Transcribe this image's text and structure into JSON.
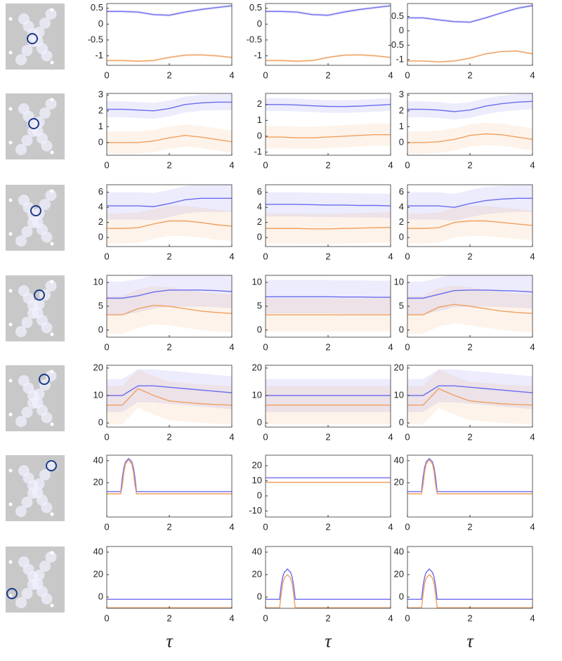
{
  "chart_data": [
    {
      "type": "line",
      "xlim": [
        0,
        4
      ],
      "xticks": [
        0,
        2,
        4
      ],
      "ylim": [
        -1.3,
        0.65
      ],
      "yticks": [
        -1,
        -0.5,
        0,
        0.5
      ],
      "x": [
        0,
        0.5,
        1,
        1.5,
        2,
        2.5,
        3,
        3.5,
        4
      ],
      "series": [
        {
          "color": "#6b6bf0",
          "values": [
            0.4,
            0.4,
            0.38,
            0.3,
            0.28,
            0.38,
            0.46,
            0.52,
            0.58
          ],
          "spread": 0.05
        },
        {
          "color": "#f0a060",
          "values": [
            -1.15,
            -1.15,
            -1.17,
            -1.15,
            -1.05,
            -0.98,
            -0.97,
            -1.0,
            -1.05
          ],
          "spread": 0.04
        }
      ]
    },
    {
      "type": "line",
      "xlim": [
        0,
        4
      ],
      "xticks": [
        0,
        2,
        4
      ],
      "ylim": [
        -1.3,
        0.65
      ],
      "yticks": [
        -1,
        -0.5,
        0,
        0.5
      ],
      "x": [
        0,
        0.5,
        1,
        1.5,
        2,
        2.5,
        3,
        3.5,
        4
      ],
      "series": [
        {
          "color": "#6b6bf0",
          "values": [
            0.4,
            0.4,
            0.38,
            0.3,
            0.28,
            0.38,
            0.46,
            0.52,
            0.58
          ],
          "spread": 0.05
        },
        {
          "color": "#f0a060",
          "values": [
            -1.15,
            -1.15,
            -1.17,
            -1.15,
            -1.05,
            -0.98,
            -0.97,
            -1.0,
            -1.05
          ],
          "spread": 0.04
        }
      ]
    },
    {
      "type": "line",
      "xlim": [
        0,
        4
      ],
      "xticks": [
        0,
        2,
        4
      ],
      "ylim": [
        -1.2,
        0.95
      ],
      "yticks": [
        -1,
        -0.5,
        0,
        0.5
      ],
      "x": [
        0,
        0.5,
        1,
        1.5,
        2,
        2.5,
        3,
        3.5,
        4
      ],
      "series": [
        {
          "color": "#6b6bf0",
          "values": [
            0.45,
            0.45,
            0.38,
            0.32,
            0.3,
            0.45,
            0.62,
            0.78,
            0.88
          ],
          "spread": 0.05
        },
        {
          "color": "#f0a060",
          "values": [
            -1.05,
            -1.05,
            -1.08,
            -1.05,
            -0.95,
            -0.8,
            -0.72,
            -0.7,
            -0.8
          ],
          "spread": 0.04
        }
      ]
    },
    {
      "type": "line",
      "xlim": [
        0,
        4
      ],
      "xticks": [
        0,
        2,
        4
      ],
      "ylim": [
        -0.8,
        3.1
      ],
      "yticks": [
        0,
        1,
        2,
        3
      ],
      "x": [
        0,
        0.5,
        1,
        1.5,
        2,
        2.5,
        3,
        3.5,
        4
      ],
      "series": [
        {
          "color": "#6b6bf0",
          "values": [
            2.1,
            2.1,
            2.05,
            2.0,
            2.15,
            2.4,
            2.5,
            2.55,
            2.55
          ],
          "spread": 0.5
        },
        {
          "color": "#f0a060",
          "values": [
            0,
            0,
            0,
            0.1,
            0.3,
            0.45,
            0.35,
            0.2,
            0.05
          ],
          "spread": 0.7
        }
      ]
    },
    {
      "type": "line",
      "xlim": [
        0,
        4
      ],
      "xticks": [
        0,
        2,
        4
      ],
      "ylim": [
        -1.2,
        2.7
      ],
      "yticks": [
        -1,
        0,
        1,
        2
      ],
      "x": [
        0,
        0.5,
        1,
        1.5,
        2,
        2.5,
        3,
        3.5,
        4
      ],
      "series": [
        {
          "color": "#6b6bf0",
          "values": [
            2.0,
            2.0,
            1.97,
            1.92,
            1.88,
            1.87,
            1.9,
            1.95,
            2.0
          ],
          "spread": 0.4
        },
        {
          "color": "#f0a060",
          "values": [
            -0.05,
            -0.05,
            -0.1,
            -0.1,
            -0.05,
            0,
            0.05,
            0.1,
            0.1
          ],
          "spread": 0.7
        }
      ]
    },
    {
      "type": "line",
      "xlim": [
        0,
        4
      ],
      "xticks": [
        0,
        2,
        4
      ],
      "ylim": [
        -0.8,
        3.1
      ],
      "yticks": [
        0,
        1,
        2,
        3
      ],
      "x": [
        0,
        0.5,
        1,
        1.5,
        2,
        2.5,
        3,
        3.5,
        4
      ],
      "series": [
        {
          "color": "#6b6bf0",
          "values": [
            2.1,
            2.1,
            2.05,
            1.95,
            2.05,
            2.3,
            2.45,
            2.55,
            2.6
          ],
          "spread": 0.5
        },
        {
          "color": "#f0a060",
          "values": [
            0,
            0,
            0.05,
            0.2,
            0.45,
            0.55,
            0.5,
            0.35,
            0.2
          ],
          "spread": 0.7
        }
      ]
    },
    {
      "type": "line",
      "xlim": [
        0,
        4
      ],
      "xticks": [
        0,
        2,
        4
      ],
      "ylim": [
        -1.2,
        7
      ],
      "yticks": [
        0,
        2,
        4,
        6
      ],
      "x": [
        0,
        0.5,
        1,
        1.5,
        2,
        2.5,
        3,
        3.5,
        4
      ],
      "series": [
        {
          "color": "#6b6bf0",
          "values": [
            4.2,
            4.2,
            4.2,
            4.1,
            4.5,
            5,
            5.2,
            5.2,
            5.2
          ],
          "spread": 1.8
        },
        {
          "color": "#f0a060",
          "values": [
            1.2,
            1.2,
            1.3,
            1.8,
            2.2,
            2.2,
            2,
            1.7,
            1.5
          ],
          "spread": 2
        }
      ]
    },
    {
      "type": "line",
      "xlim": [
        0,
        4
      ],
      "xticks": [
        0,
        2,
        4
      ],
      "ylim": [
        -1.2,
        7
      ],
      "yticks": [
        0,
        2,
        4,
        6
      ],
      "x": [
        0,
        0.5,
        1,
        1.5,
        2,
        2.5,
        3,
        3.5,
        4
      ],
      "series": [
        {
          "color": "#6b6bf0",
          "values": [
            4.4,
            4.4,
            4.4,
            4.35,
            4.3,
            4.3,
            4.25,
            4.25,
            4.2
          ],
          "spread": 1.6
        },
        {
          "color": "#f0a060",
          "values": [
            1.2,
            1.2,
            1.2,
            1.15,
            1.15,
            1.2,
            1.25,
            1.3,
            1.35
          ],
          "spread": 2
        }
      ]
    },
    {
      "type": "line",
      "xlim": [
        0,
        4
      ],
      "xticks": [
        0,
        2,
        4
      ],
      "ylim": [
        -1.2,
        7
      ],
      "yticks": [
        0,
        2,
        4,
        6
      ],
      "x": [
        0,
        0.5,
        1,
        1.5,
        2,
        2.5,
        3,
        3.5,
        4
      ],
      "series": [
        {
          "color": "#6b6bf0",
          "values": [
            4.2,
            4.2,
            4.2,
            4.0,
            4.5,
            4.9,
            5.1,
            5.2,
            5.2
          ],
          "spread": 1.8
        },
        {
          "color": "#f0a060",
          "values": [
            1.2,
            1.2,
            1.3,
            2.0,
            2.2,
            2.2,
            2.0,
            1.8,
            1.6
          ],
          "spread": 2
        }
      ]
    },
    {
      "type": "line",
      "xlim": [
        0,
        4
      ],
      "xticks": [
        0,
        2,
        4
      ],
      "ylim": [
        -1.5,
        11.5
      ],
      "yticks": [
        0,
        5,
        10
      ],
      "x": [
        0,
        0.5,
        1,
        1.5,
        2,
        2.5,
        3,
        3.5,
        4
      ],
      "series": [
        {
          "color": "#6b6bf0",
          "values": [
            6.7,
            6.7,
            7.2,
            8,
            8.4,
            8.4,
            8.4,
            8.3,
            8.1
          ],
          "spread": 3.5
        },
        {
          "color": "#f0a060",
          "values": [
            3.2,
            3.2,
            4.5,
            5.2,
            5,
            4.5,
            4,
            3.7,
            3.5
          ],
          "spread": 4
        }
      ]
    },
    {
      "type": "line",
      "xlim": [
        0,
        4
      ],
      "xticks": [
        0,
        2,
        4
      ],
      "ylim": [
        -1.5,
        11.5
      ],
      "yticks": [
        0,
        5,
        10
      ],
      "x": [
        0,
        0.5,
        1,
        1.5,
        2,
        2.5,
        3,
        3.5,
        4
      ],
      "series": [
        {
          "color": "#6b6bf0",
          "values": [
            7,
            7,
            7,
            7,
            7,
            6.95,
            6.95,
            6.9,
            6.9
          ],
          "spread": 3.5
        },
        {
          "color": "#f0a060",
          "values": [
            3.2,
            3.2,
            3.2,
            3.2,
            3.2,
            3.2,
            3.2,
            3.2,
            3.2
          ],
          "spread": 3.5
        }
      ]
    },
    {
      "type": "line",
      "xlim": [
        0,
        4
      ],
      "xticks": [
        0,
        2,
        4
      ],
      "ylim": [
        -1.5,
        11.5
      ],
      "yticks": [
        0,
        5,
        10
      ],
      "x": [
        0,
        0.5,
        1,
        1.5,
        2,
        2.5,
        3,
        3.5,
        4
      ],
      "series": [
        {
          "color": "#6b6bf0",
          "values": [
            6.7,
            6.7,
            7.5,
            8.3,
            8.4,
            8.4,
            8.3,
            8.2,
            8.0
          ],
          "spread": 3.5
        },
        {
          "color": "#f0a060",
          "values": [
            3.2,
            3.2,
            4.8,
            5.4,
            5,
            4.5,
            4,
            3.7,
            3.5
          ],
          "spread": 4
        }
      ]
    },
    {
      "type": "line",
      "xlim": [
        0,
        4
      ],
      "xticks": [
        0,
        2,
        4
      ],
      "ylim": [
        -1.5,
        21
      ],
      "yticks": [
        0,
        10,
        20
      ],
      "x": [
        0,
        0.5,
        1,
        1.5,
        2,
        2.5,
        3,
        3.5,
        4
      ],
      "series": [
        {
          "color": "#6b6bf0",
          "values": [
            10,
            10,
            13.5,
            13.5,
            13,
            12.5,
            12,
            11.5,
            11
          ],
          "spread": 6
        },
        {
          "color": "#f0a060",
          "values": [
            6.5,
            6.5,
            12.5,
            10,
            8,
            7.5,
            7,
            6.7,
            6.5
          ],
          "spread": 7
        }
      ]
    },
    {
      "type": "line",
      "xlim": [
        0,
        4
      ],
      "xticks": [
        0,
        2,
        4
      ],
      "ylim": [
        -1.5,
        21
      ],
      "yticks": [
        0,
        10,
        20
      ],
      "x": [
        0,
        0.5,
        1,
        1.5,
        2,
        2.5,
        3,
        3.5,
        4
      ],
      "series": [
        {
          "color": "#6b6bf0",
          "values": [
            10,
            10,
            10,
            10,
            10,
            10,
            10,
            10,
            10
          ],
          "spread": 6
        },
        {
          "color": "#f0a060",
          "values": [
            6.5,
            6.5,
            6.5,
            6.5,
            6.5,
            6.5,
            6.5,
            6.5,
            6.5
          ],
          "spread": 7
        }
      ]
    },
    {
      "type": "line",
      "xlim": [
        0,
        4
      ],
      "xticks": [
        0,
        2,
        4
      ],
      "ylim": [
        -1.5,
        21
      ],
      "yticks": [
        0,
        10,
        20
      ],
      "x": [
        0,
        0.5,
        1,
        1.5,
        2,
        2.5,
        3,
        3.5,
        4
      ],
      "series": [
        {
          "color": "#6b6bf0",
          "values": [
            10,
            10,
            13.5,
            13.5,
            13,
            12.5,
            12,
            11.5,
            11
          ],
          "spread": 6
        },
        {
          "color": "#f0a060",
          "values": [
            6.5,
            6.5,
            12.5,
            10,
            8,
            7.5,
            7,
            6.7,
            6.5
          ],
          "spread": 7
        }
      ]
    },
    {
      "type": "line",
      "xlim": [
        0,
        4
      ],
      "xticks": [
        0,
        2,
        4
      ],
      "ylim": [
        -11,
        45
      ],
      "yticks": [
        20,
        40
      ],
      "x": [
        0,
        0.45,
        0.5,
        0.55,
        0.6,
        0.7,
        0.8,
        0.85,
        0.9,
        0.95,
        1,
        4
      ],
      "series": [
        {
          "color": "#6b6bf0",
          "values": [
            12,
            12,
            25,
            34,
            39,
            42,
            39,
            34,
            25,
            12,
            12,
            12
          ]
        },
        {
          "color": "#f0a060",
          "values": [
            10,
            10,
            18,
            30,
            37,
            41,
            37,
            30,
            18,
            10,
            10,
            10
          ]
        }
      ]
    },
    {
      "type": "line",
      "xlim": [
        0,
        4
      ],
      "xticks": [
        0,
        2,
        4
      ],
      "ylim": [
        -14,
        27
      ],
      "yticks": [
        -10,
        0,
        10,
        20
      ],
      "x": [
        0,
        4
      ],
      "series": [
        {
          "color": "#6b6bf0",
          "values": [
            12,
            12
          ]
        },
        {
          "color": "#f0a060",
          "values": [
            9,
            9
          ]
        }
      ]
    },
    {
      "type": "line",
      "xlim": [
        0,
        4
      ],
      "xticks": [
        0,
        2,
        4
      ],
      "ylim": [
        -11,
        45
      ],
      "yticks": [
        20,
        40
      ],
      "x": [
        0,
        0.45,
        0.5,
        0.55,
        0.6,
        0.7,
        0.8,
        0.85,
        0.9,
        0.95,
        1,
        4
      ],
      "series": [
        {
          "color": "#6b6bf0",
          "values": [
            12,
            12,
            25,
            34,
            39,
            42,
            39,
            34,
            25,
            12,
            12,
            12
          ]
        },
        {
          "color": "#f0a060",
          "values": [
            10,
            10,
            18,
            30,
            37,
            41,
            37,
            30,
            18,
            10,
            10,
            10
          ]
        }
      ]
    },
    {
      "type": "line",
      "xlim": [
        0,
        4
      ],
      "xticks": [
        0,
        2,
        4
      ],
      "ylim": [
        -10,
        45
      ],
      "yticks": [
        0,
        20,
        40
      ],
      "x": [
        0,
        4
      ],
      "xlabel": "τ",
      "series": [
        {
          "color": "#6b6bf0",
          "values": [
            -2,
            -2
          ]
        },
        {
          "color": "#f0a060",
          "values": [
            -9.5,
            -9.5
          ]
        }
      ]
    },
    {
      "type": "line",
      "xlim": [
        0,
        4
      ],
      "xticks": [
        0,
        2,
        4
      ],
      "ylim": [
        -10,
        45
      ],
      "yticks": [
        0,
        20,
        40
      ],
      "x": [
        0,
        0.45,
        0.5,
        0.55,
        0.6,
        0.7,
        0.8,
        0.85,
        0.9,
        0.95,
        1,
        4
      ],
      "xlabel": "τ",
      "series": [
        {
          "color": "#6b6bf0",
          "values": [
            -2,
            -2,
            10,
            18,
            22,
            25,
            22,
            18,
            10,
            -2,
            -2,
            -2
          ]
        },
        {
          "color": "#f0a060",
          "values": [
            -9.5,
            -9.5,
            2,
            12,
            17,
            20,
            17,
            12,
            2,
            -9.5,
            -9.5,
            -9.5
          ]
        }
      ]
    },
    {
      "type": "line",
      "xlim": [
        0,
        4
      ],
      "xticks": [
        0,
        2,
        4
      ],
      "ylim": [
        -10,
        45
      ],
      "yticks": [
        0,
        20,
        40
      ],
      "x": [
        0,
        0.45,
        0.5,
        0.55,
        0.6,
        0.7,
        0.8,
        0.85,
        0.9,
        0.95,
        1,
        4
      ],
      "xlabel": "τ",
      "series": [
        {
          "color": "#6b6bf0",
          "values": [
            -2,
            -2,
            10,
            18,
            22,
            25,
            22,
            18,
            10,
            -2,
            -2,
            -2
          ]
        },
        {
          "color": "#f0a060",
          "values": [
            -9.5,
            -9.5,
            2,
            12,
            17,
            20,
            17,
            12,
            2,
            -9.5,
            -9.5,
            -9.5
          ]
        }
      ]
    }
  ]
}
